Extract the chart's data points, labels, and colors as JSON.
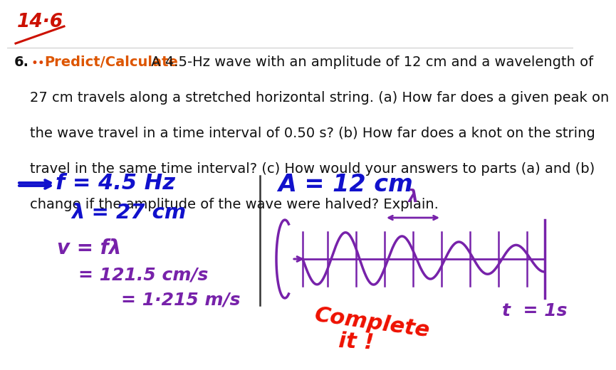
{
  "bg_color": "#ffffff",
  "page_number_color": "#cc1100",
  "bullet_color": "#dd4400",
  "predict_color": "#dd5500",
  "question_text_color": "#111111",
  "handwritten_blue": "#1111cc",
  "handwritten_purple": "#7722aa",
  "handwritten_red": "#ee1100",
  "separator_color": "#333333",
  "q1_after_predict": " A 4.5-Hz wave with an amplitude of 12 cm and a wavelength of",
  "q2": "27 cm travels along a stretched horizontal string. (a) How far does a given peak on",
  "q3": "the wave travel in a time interval of 0.50 s? (b) How far does a knot on the string",
  "q4": "travel in the same time interval? (c) How would your answers to parts (a) and (b)",
  "q5": "change if the amplitude of the wave were halved? Explain."
}
